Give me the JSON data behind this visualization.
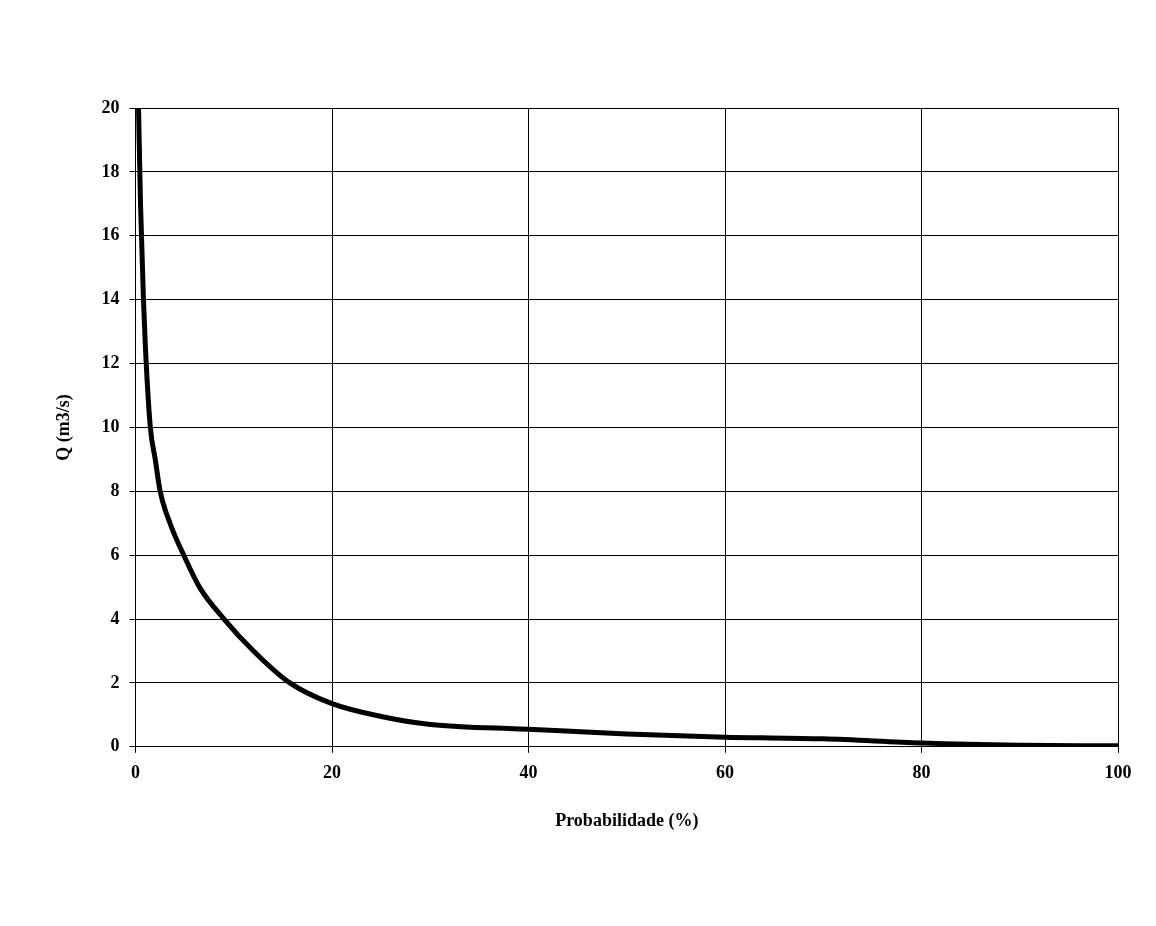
{
  "chart_data": {
    "type": "line",
    "xlabel": "Probabilidade (%)",
    "ylabel": "Q (m3/s)",
    "x": [
      0.3,
      0.5,
      0.8,
      1,
      1.5,
      2,
      2.5,
      3.5,
      4.9,
      6.5,
      9,
      12,
      15.7,
      20,
      25,
      30,
      40,
      50,
      60,
      70,
      80,
      90,
      100
    ],
    "series": [
      {
        "color": "#000000",
        "values": [
          20,
          17,
          14,
          12.5,
          10,
          9,
          8,
          7,
          6,
          5,
          4,
          3,
          2,
          1.35,
          0.95,
          0.7,
          0.55,
          0.4,
          0.3,
          0.25,
          0.12,
          0.05,
          0.03
        ]
      }
    ],
    "xlim": [
      0,
      100
    ],
    "xticks": [
      0,
      20,
      40,
      60,
      80,
      100
    ],
    "ylim": [
      0,
      20
    ],
    "yticks": [
      0,
      2,
      4,
      6,
      8,
      10,
      12,
      14,
      16,
      18,
      20
    ],
    "grid": true,
    "legend": false,
    "marker": "none",
    "line_style": "solid"
  }
}
